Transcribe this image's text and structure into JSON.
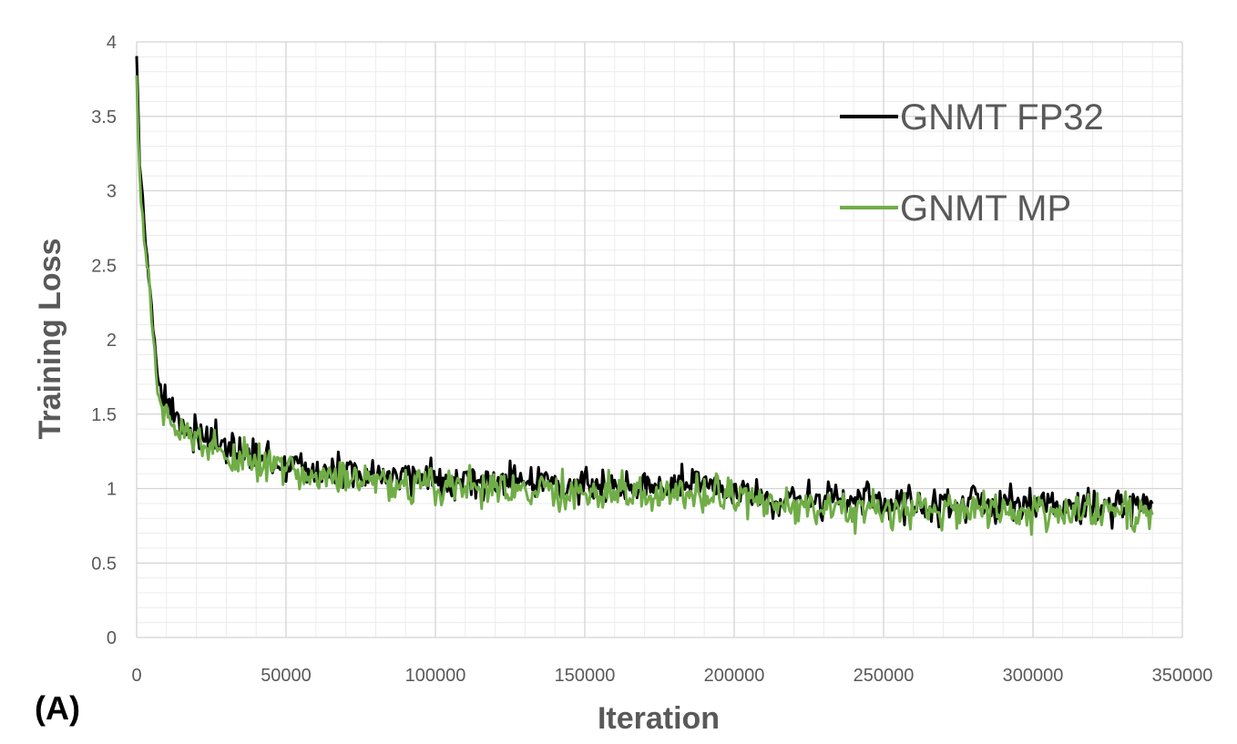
{
  "chart_data": {
    "type": "line",
    "panel_label": "(A)",
    "title": "",
    "xlabel": "Iteration",
    "ylabel": "Training Loss",
    "xlim": [
      0,
      350000
    ],
    "ylim": [
      0,
      4
    ],
    "x_ticks": [
      "0",
      "50000",
      "100000",
      "150000",
      "200000",
      "250000",
      "300000",
      "350000"
    ],
    "y_ticks": [
      "0",
      "0.5",
      "1",
      "1.5",
      "2",
      "2.5",
      "3",
      "3.5",
      "4"
    ],
    "grid": {
      "major": true,
      "minor": true,
      "x_minor_step": 10000,
      "y_minor_step": 0.1
    },
    "legend": "top-right",
    "series": [
      {
        "name": "GNMT FP32",
        "color": "#000000",
        "x": [
          0,
          1000,
          2500,
          4000,
          5500,
          7000,
          9000,
          11000,
          13000,
          16000,
          20000,
          25000,
          30000,
          40000,
          50000,
          60000,
          70000,
          80000,
          90000,
          100000,
          110000,
          120000,
          130000,
          140000,
          150000,
          160000,
          170000,
          180000,
          190000,
          200000,
          205000,
          210000,
          220000,
          230000,
          240000,
          250000,
          260000,
          270000,
          280000,
          290000,
          300000,
          310000,
          320000,
          330000,
          340000
        ],
        "y": [
          3.95,
          3.2,
          2.8,
          2.45,
          2.1,
          1.7,
          1.6,
          1.55,
          1.48,
          1.42,
          1.38,
          1.33,
          1.27,
          1.2,
          1.17,
          1.12,
          1.1,
          1.08,
          1.07,
          1.07,
          1.06,
          1.05,
          1.04,
          1.04,
          1.03,
          1.03,
          1.02,
          1.02,
          1.01,
          1.0,
          0.98,
          0.93,
          0.92,
          0.92,
          0.91,
          0.9,
          0.9,
          0.89,
          0.89,
          0.89,
          0.89,
          0.88,
          0.88,
          0.88,
          0.88
        ]
      },
      {
        "name": "GNMT MP",
        "color": "#70AD47",
        "x": [
          0,
          1000,
          2500,
          4000,
          5500,
          7000,
          9000,
          11000,
          13000,
          16000,
          20000,
          25000,
          30000,
          40000,
          50000,
          60000,
          70000,
          80000,
          90000,
          100000,
          110000,
          120000,
          130000,
          140000,
          150000,
          160000,
          170000,
          180000,
          190000,
          200000,
          205000,
          210000,
          220000,
          230000,
          240000,
          250000,
          260000,
          270000,
          280000,
          290000,
          300000,
          310000,
          320000,
          330000,
          340000
        ],
        "y": [
          3.8,
          3.1,
          2.7,
          2.4,
          2.05,
          1.65,
          1.55,
          1.5,
          1.44,
          1.38,
          1.33,
          1.28,
          1.22,
          1.16,
          1.12,
          1.08,
          1.06,
          1.04,
          1.03,
          1.02,
          1.01,
          1.0,
          0.99,
          0.99,
          0.98,
          0.98,
          0.97,
          0.97,
          0.96,
          0.96,
          0.94,
          0.89,
          0.88,
          0.87,
          0.87,
          0.86,
          0.86,
          0.85,
          0.85,
          0.85,
          0.85,
          0.84,
          0.84,
          0.84,
          0.84
        ]
      }
    ]
  }
}
